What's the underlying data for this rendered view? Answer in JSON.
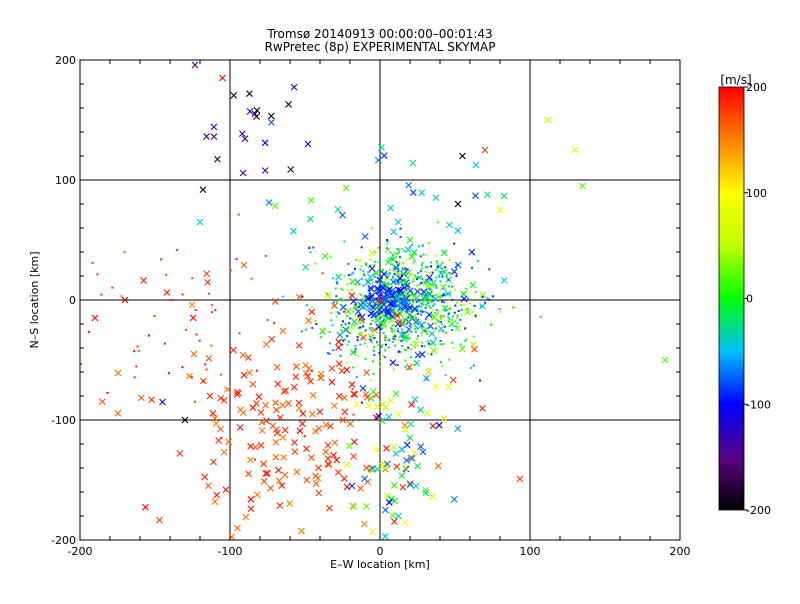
{
  "chart_data": {
    "type": "scatter",
    "title": "Tromsø 20140913 00:00:00–00:01:43",
    "subtitle": "RwPretec (8p) EXPERIMENTAL SKYMAP",
    "xlabel": "E–W location [km]",
    "ylabel": "N–S location [km]",
    "xlim": [
      -200,
      200
    ],
    "ylim": [
      -200,
      200
    ],
    "x_ticks": [
      -200,
      -100,
      0,
      100,
      200
    ],
    "y_ticks": [
      -200,
      -100,
      0,
      100,
      200
    ],
    "grid": true,
    "colorbar": {
      "label": "[m/s]",
      "range": [
        -200,
        200
      ],
      "ticks": [
        200,
        100,
        0,
        -100,
        -200
      ],
      "colormap": "rainbow"
    },
    "point_groups": [
      {
        "name": "central cluster",
        "marker": "dot",
        "count": 900,
        "cx": 15,
        "cy": -5,
        "sx": 25,
        "sy": 25,
        "vmin": -100,
        "vmax": 60
      },
      {
        "name": "central core",
        "marker": "cross",
        "count": 80,
        "cx": 5,
        "cy": 0,
        "sx": 10,
        "sy": 10,
        "vmin": -110,
        "vmax": -60
      },
      {
        "name": "south-west band",
        "marker": "cross",
        "count": 200,
        "cx": -55,
        "cy": -110,
        "sx": 45,
        "sy": 55,
        "vmin": 150,
        "vmax": 200
      },
      {
        "name": "west scatter",
        "marker": "dot",
        "count": 70,
        "cx": -120,
        "cy": -20,
        "sx": 50,
        "sy": 40,
        "vmin": 160,
        "vmax": 200
      },
      {
        "name": "south column",
        "marker": "cross",
        "count": 80,
        "cx": 15,
        "cy": -130,
        "sx": 15,
        "sy": 40,
        "vmin": -110,
        "vmax": 120
      },
      {
        "name": "north scatter",
        "marker": "cross",
        "count": 40,
        "cx": 10,
        "cy": 60,
        "sx": 35,
        "sy": 35,
        "vmin": -100,
        "vmax": 40
      },
      {
        "name": "north-west cluster",
        "marker": "cross",
        "count": 20,
        "cx": -85,
        "cy": 140,
        "sx": 20,
        "sy": 25,
        "vmin": -200,
        "vmax": -80
      }
    ],
    "labeled_points": [
      {
        "x": -105,
        "y": 185,
        "v": 200
      },
      {
        "x": -87,
        "y": 172,
        "v": -200
      },
      {
        "x": -82,
        "y": 158,
        "v": -200
      },
      {
        "x": -48,
        "y": 130,
        "v": -110
      },
      {
        "x": 55,
        "y": 120,
        "v": -200
      },
      {
        "x": 70,
        "y": 125,
        "v": 180
      },
      {
        "x": 112,
        "y": 150,
        "v": 60
      },
      {
        "x": 130,
        "y": 125,
        "v": 80
      },
      {
        "x": 135,
        "y": 95,
        "v": 20
      },
      {
        "x": -118,
        "y": 92,
        "v": -200
      },
      {
        "x": -120,
        "y": 65,
        "v": -40
      },
      {
        "x": -170,
        "y": 0,
        "v": 200
      },
      {
        "x": -190,
        "y": -15,
        "v": 200
      },
      {
        "x": -145,
        "y": -85,
        "v": -120
      },
      {
        "x": -130,
        "y": -100,
        "v": -200
      },
      {
        "x": 190,
        "y": -50,
        "v": 20
      },
      {
        "x": 80,
        "y": 75,
        "v": 90
      },
      {
        "x": 52,
        "y": 80,
        "v": -200
      },
      {
        "x": -95,
        "y": -190,
        "v": 160
      }
    ]
  }
}
